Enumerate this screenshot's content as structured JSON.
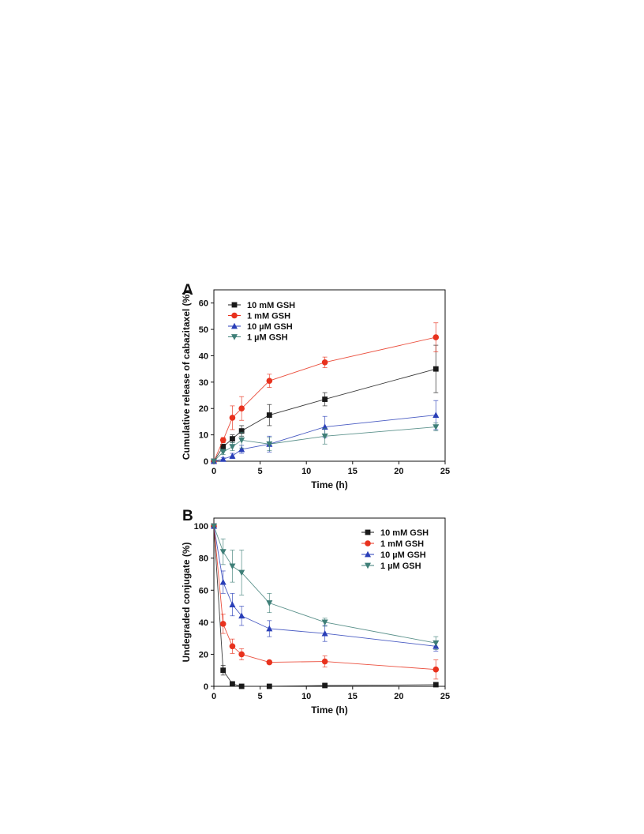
{
  "colors": {
    "10 mM GSH": "#1a1a1a",
    "1 mM GSH": "#e8321e",
    "10 µM GSH": "#2a3fb8",
    "1 µM GSH": "#3f7f78",
    "axis": "#111111"
  },
  "chart_data": [
    {
      "panel_label": "A",
      "type": "line",
      "xlabel": "Time (h)",
      "ylabel": "Cumulative release of cabazitaxel (%)",
      "xlim": [
        0,
        25
      ],
      "ylim": [
        0,
        65
      ],
      "xticks": [
        0,
        5,
        10,
        15,
        20,
        25
      ],
      "yticks": [
        0,
        10,
        20,
        30,
        40,
        50,
        60
      ],
      "grid": false,
      "legend_position": "top-left",
      "series": [
        {
          "name": "10 mM GSH",
          "marker": "square",
          "x": [
            0,
            1,
            2,
            3,
            6,
            12,
            24
          ],
          "y": [
            0,
            5.5,
            8.5,
            11.5,
            17.5,
            23.5,
            35
          ],
          "err": [
            0,
            1.0,
            1.5,
            2.0,
            4.0,
            2.5,
            9.0
          ]
        },
        {
          "name": "1 mM GSH",
          "marker": "circle",
          "x": [
            0,
            1,
            2,
            3,
            6,
            12,
            24
          ],
          "y": [
            0,
            8,
            16.5,
            20,
            30.5,
            37.5,
            47
          ],
          "err": [
            0,
            1.0,
            4.5,
            4.5,
            2.5,
            2.0,
            5.5
          ]
        },
        {
          "name": "10 µM GSH",
          "marker": "triangle-up",
          "x": [
            0,
            1,
            2,
            3,
            6,
            12,
            24
          ],
          "y": [
            0,
            0.8,
            2,
            4.5,
            6.5,
            13,
            17.5
          ],
          "err": [
            0,
            0.5,
            1.0,
            1.5,
            3.0,
            4.0,
            5.5
          ]
        },
        {
          "name": "1 µM GSH",
          "marker": "triangle-down",
          "x": [
            0,
            1,
            2,
            3,
            6,
            12,
            24
          ],
          "y": [
            0,
            3.5,
            5.5,
            8,
            6.5,
            9.5,
            13
          ],
          "err": [
            0,
            1.0,
            1.5,
            3.0,
            2.5,
            3.0,
            1.5
          ]
        }
      ]
    },
    {
      "panel_label": "B",
      "type": "line",
      "xlabel": "Time (h)",
      "ylabel": "Undegraded conjugate (%)",
      "xlim": [
        0,
        25
      ],
      "ylim": [
        0,
        105
      ],
      "xticks": [
        0,
        5,
        10,
        15,
        20,
        25
      ],
      "yticks": [
        0,
        20,
        40,
        60,
        80,
        100
      ],
      "grid": false,
      "legend_position": "top-right",
      "series": [
        {
          "name": "10 mM GSH",
          "marker": "square",
          "x": [
            0,
            1,
            2,
            3,
            6,
            12,
            24
          ],
          "y": [
            100,
            10,
            1.5,
            0,
            0,
            0.5,
            1
          ],
          "err": [
            0,
            3.0,
            1.5,
            0.5,
            0,
            1.5,
            1.0
          ]
        },
        {
          "name": "1 mM GSH",
          "marker": "circle",
          "x": [
            0,
            1,
            2,
            3,
            6,
            12,
            24
          ],
          "y": [
            100,
            39,
            25,
            20,
            15,
            15.5,
            10.5
          ],
          "err": [
            0,
            6.0,
            4.5,
            3.5,
            1.0,
            3.5,
            6.0
          ]
        },
        {
          "name": "10 µM GSH",
          "marker": "triangle-up",
          "x": [
            0,
            1,
            2,
            3,
            6,
            12,
            24
          ],
          "y": [
            100,
            65,
            51,
            44,
            36,
            33,
            25
          ],
          "err": [
            0,
            7.0,
            7.0,
            6.0,
            5.0,
            5.0,
            3.0
          ]
        },
        {
          "name": "1 µM GSH",
          "marker": "triangle-down",
          "x": [
            0,
            1,
            2,
            3,
            6,
            12,
            24
          ],
          "y": [
            100,
            84,
            75,
            71,
            52,
            40,
            27
          ],
          "err": [
            0,
            8.0,
            10.0,
            14.0,
            6.0,
            2.5,
            4.0
          ]
        }
      ]
    }
  ]
}
